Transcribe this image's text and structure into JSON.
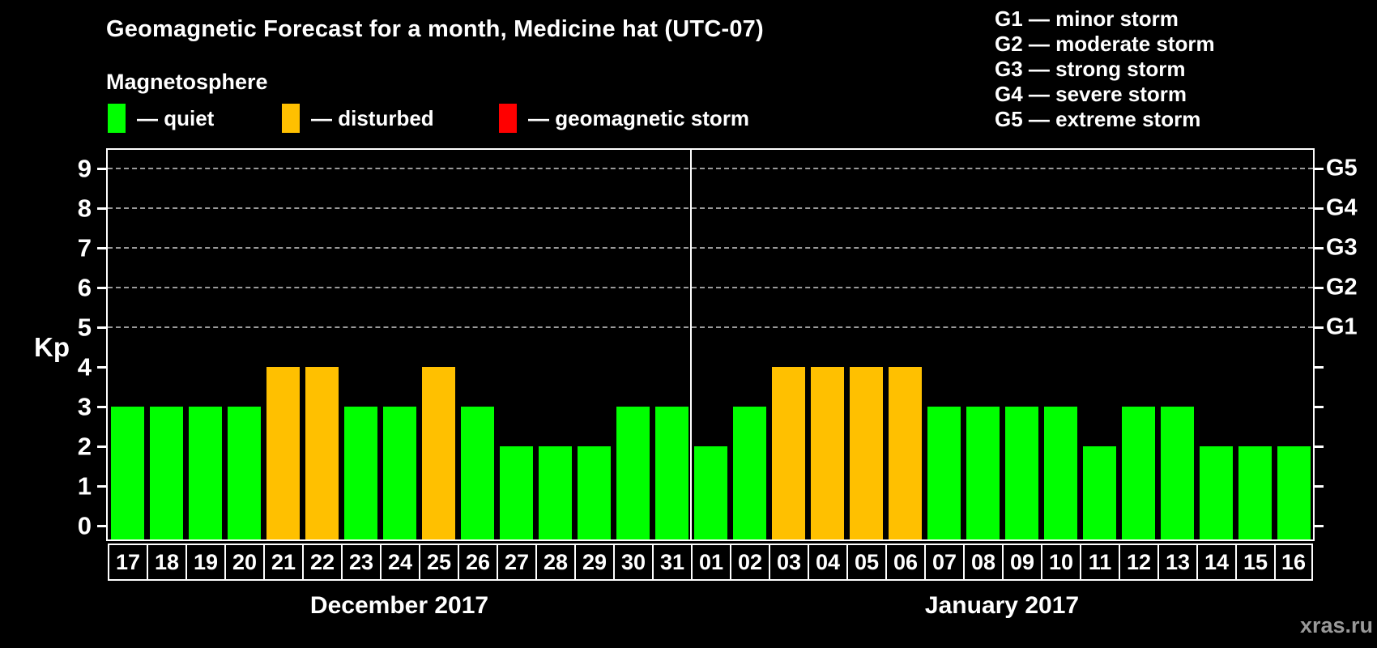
{
  "title": "Geomagnetic Forecast for a month, Medicine hat (UTC-07)",
  "subtitle": "Magnetosphere",
  "condition_legend": {
    "items": [
      {
        "condition": "quiet",
        "label": "— quiet",
        "color": "#00ff00"
      },
      {
        "condition": "disturbed",
        "label": "— disturbed",
        "color": "#ffc000"
      },
      {
        "condition": "storm",
        "label": "— geomagnetic storm",
        "color": "#ff0000"
      }
    ]
  },
  "storm_scale_legend": {
    "items": [
      "G1 — minor storm",
      "G2 — moderate storm",
      "G3 — strong storm",
      "G4 — severe storm",
      "G5 — extreme storm"
    ]
  },
  "watermark": "xras.ru",
  "chart_data": {
    "type": "bar",
    "ylabel": "Kp",
    "ylim": [
      -0.4,
      9.5
    ],
    "yticks": [
      0,
      1,
      2,
      3,
      4,
      5,
      6,
      7,
      8,
      9
    ],
    "gridlines_at_kp": [
      5,
      6,
      7,
      8,
      9
    ],
    "grid_style": "dashed-horizontal",
    "legend_position": "top-left",
    "right_axis": [
      {
        "kp": 5,
        "label": "G1"
      },
      {
        "kp": 6,
        "label": "G2"
      },
      {
        "kp": 7,
        "label": "G3"
      },
      {
        "kp": 8,
        "label": "G4"
      },
      {
        "kp": 9,
        "label": "G5"
      }
    ],
    "sections": [
      {
        "month_label": "December 2017",
        "days": [
          "17",
          "18",
          "19",
          "20",
          "21",
          "22",
          "23",
          "24",
          "25",
          "26",
          "27",
          "28",
          "29",
          "30",
          "31"
        ],
        "values": [
          3,
          3,
          3,
          3,
          4,
          4,
          3,
          3,
          4,
          3,
          2,
          2,
          2,
          3,
          3
        ],
        "conditions": [
          "quiet",
          "quiet",
          "quiet",
          "quiet",
          "disturbed",
          "disturbed",
          "quiet",
          "quiet",
          "disturbed",
          "quiet",
          "quiet",
          "quiet",
          "quiet",
          "quiet",
          "quiet"
        ]
      },
      {
        "month_label": "January 2017",
        "days": [
          "01",
          "02",
          "03",
          "04",
          "05",
          "06",
          "07",
          "08",
          "09",
          "10",
          "11",
          "12",
          "13",
          "14",
          "15",
          "16"
        ],
        "values": [
          2,
          3,
          4,
          4,
          4,
          4,
          3,
          3,
          3,
          3,
          2,
          3,
          3,
          2,
          2,
          2
        ],
        "conditions": [
          "quiet",
          "quiet",
          "disturbed",
          "disturbed",
          "disturbed",
          "disturbed",
          "quiet",
          "quiet",
          "quiet",
          "quiet",
          "quiet",
          "quiet",
          "quiet",
          "quiet",
          "quiet",
          "quiet"
        ]
      }
    ]
  }
}
